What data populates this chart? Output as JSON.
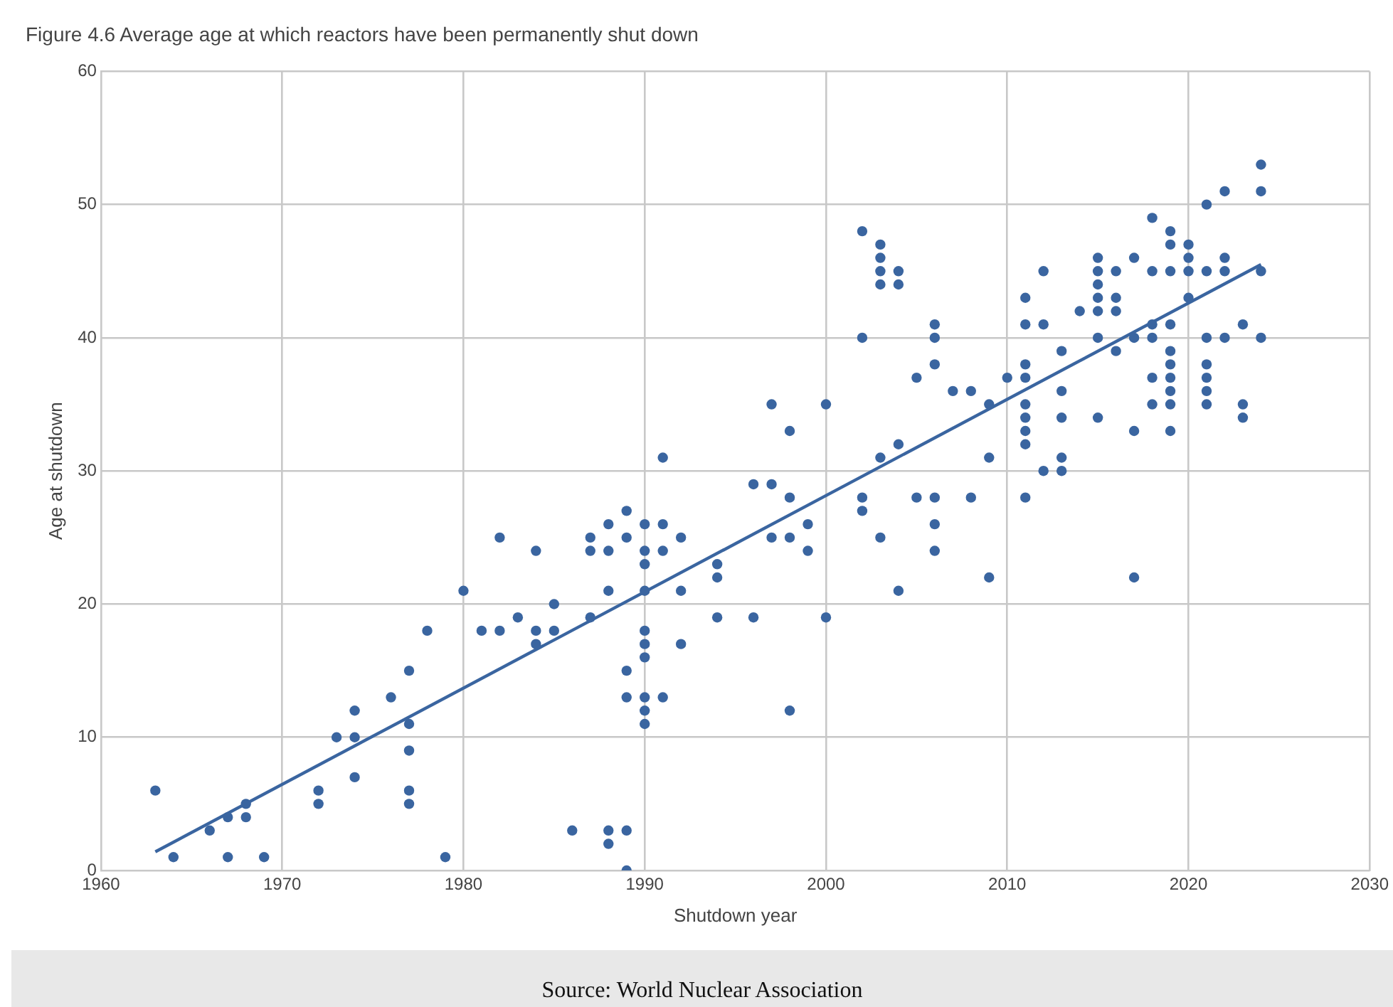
{
  "chart_data": {
    "type": "scatter",
    "title": "Figure 4.6 Average age at which reactors have been permanently shut down",
    "xlabel": "Shutdown year",
    "ylabel": "Age at shutdown",
    "annotations": [
      "Source: World Nuclear Association"
    ],
    "xlim": [
      1960,
      2030
    ],
    "xticks": [
      1960,
      1970,
      1980,
      1990,
      2000,
      2010,
      2020,
      2030
    ],
    "ylim": [
      0,
      60
    ],
    "yticks": [
      0,
      10,
      20,
      30,
      40,
      50,
      60
    ],
    "grid": true,
    "legend": false,
    "marker": "circle",
    "series": [
      {
        "color": "#3a65a0",
        "x": [
          1963,
          1964,
          1966,
          1967,
          1967,
          1968,
          1968,
          1969,
          1972,
          1972,
          1973,
          1974,
          1974,
          1974,
          1976,
          1977,
          1977,
          1977,
          1977,
          1977,
          1978,
          1979,
          1980,
          1981,
          1982,
          1982,
          1983,
          1984,
          1984,
          1984,
          1985,
          1985,
          1986,
          1987,
          1987,
          1987,
          1988,
          1988,
          1988,
          1988,
          1988,
          1989,
          1989,
          1989,
          1989,
          1989,
          1989,
          1990,
          1990,
          1990,
          1990,
          1990,
          1990,
          1990,
          1990,
          1990,
          1990,
          1991,
          1991,
          1991,
          1991,
          1992,
          1992,
          1992,
          1994,
          1994,
          1994,
          1996,
          1996,
          1997,
          1997,
          1997,
          1998,
          1998,
          1998,
          1998,
          1999,
          1999,
          2000,
          2000,
          2002,
          2002,
          2002,
          2002,
          2003,
          2003,
          2003,
          2003,
          2003,
          2003,
          2004,
          2004,
          2004,
          2004,
          2005,
          2005,
          2006,
          2006,
          2006,
          2006,
          2006,
          2006,
          2007,
          2008,
          2008,
          2009,
          2009,
          2009,
          2010,
          2011,
          2011,
          2011,
          2011,
          2011,
          2011,
          2011,
          2011,
          2011,
          2012,
          2012,
          2012,
          2013,
          2013,
          2013,
          2013,
          2013,
          2014,
          2015,
          2015,
          2015,
          2015,
          2015,
          2015,
          2015,
          2016,
          2016,
          2016,
          2016,
          2017,
          2017,
          2017,
          2017,
          2018,
          2018,
          2018,
          2018,
          2018,
          2018,
          2019,
          2019,
          2019,
          2019,
          2019,
          2019,
          2019,
          2019,
          2019,
          2019,
          2020,
          2020,
          2020,
          2020,
          2021,
          2021,
          2021,
          2021,
          2021,
          2021,
          2021,
          2022,
          2022,
          2022,
          2022,
          2023,
          2023,
          2023,
          2024,
          2024,
          2024,
          2024
        ],
        "values": [
          6,
          1,
          3,
          1,
          4,
          4,
          5,
          1,
          5,
          6,
          10,
          12,
          10,
          7,
          13,
          15,
          11,
          9,
          6,
          5,
          18,
          1,
          21,
          18,
          25,
          18,
          19,
          24,
          18,
          17,
          20,
          18,
          3,
          25,
          24,
          19,
          26,
          24,
          21,
          3,
          2,
          27,
          25,
          15,
          13,
          3,
          0,
          26,
          24,
          23,
          21,
          18,
          17,
          16,
          13,
          12,
          11,
          31,
          26,
          24,
          13,
          25,
          21,
          17,
          23,
          22,
          19,
          29,
          19,
          35,
          29,
          25,
          33,
          28,
          25,
          12,
          26,
          24,
          35,
          19,
          48,
          40,
          28,
          27,
          47,
          46,
          45,
          44,
          31,
          25,
          45,
          44,
          32,
          21,
          37,
          28,
          41,
          40,
          38,
          28,
          26,
          24,
          36,
          36,
          28,
          35,
          31,
          22,
          37,
          43,
          41,
          38,
          37,
          35,
          34,
          33,
          32,
          28,
          45,
          41,
          30,
          39,
          36,
          34,
          31,
          30,
          42,
          46,
          45,
          44,
          43,
          42,
          40,
          34,
          45,
          43,
          42,
          39,
          46,
          40,
          33,
          22,
          49,
          45,
          41,
          40,
          37,
          35,
          48,
          47,
          45,
          41,
          39,
          38,
          37,
          36,
          35,
          33,
          47,
          46,
          45,
          43,
          50,
          45,
          40,
          38,
          37,
          36,
          35,
          51,
          46,
          45,
          40,
          41,
          35,
          34,
          53,
          51,
          45,
          40
        ]
      },
      {
        "type": "line",
        "color": "#3a65a0",
        "marker": "none",
        "x": [
          1963,
          2024
        ],
        "values": [
          1.4,
          45.5
        ]
      }
    ]
  }
}
